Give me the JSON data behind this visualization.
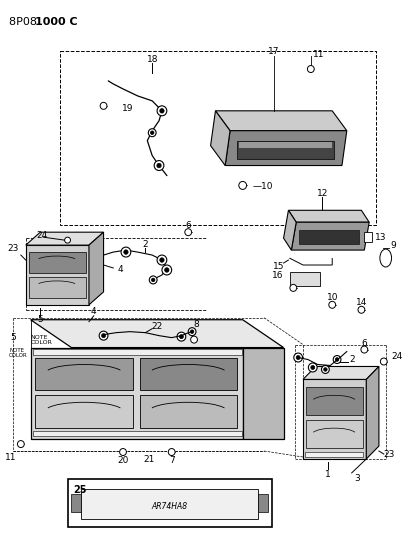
{
  "bg_color": "#ffffff",
  "title_normal": "8P08 ",
  "title_bold": "1000 C",
  "shelf_text": "AR74HA8"
}
